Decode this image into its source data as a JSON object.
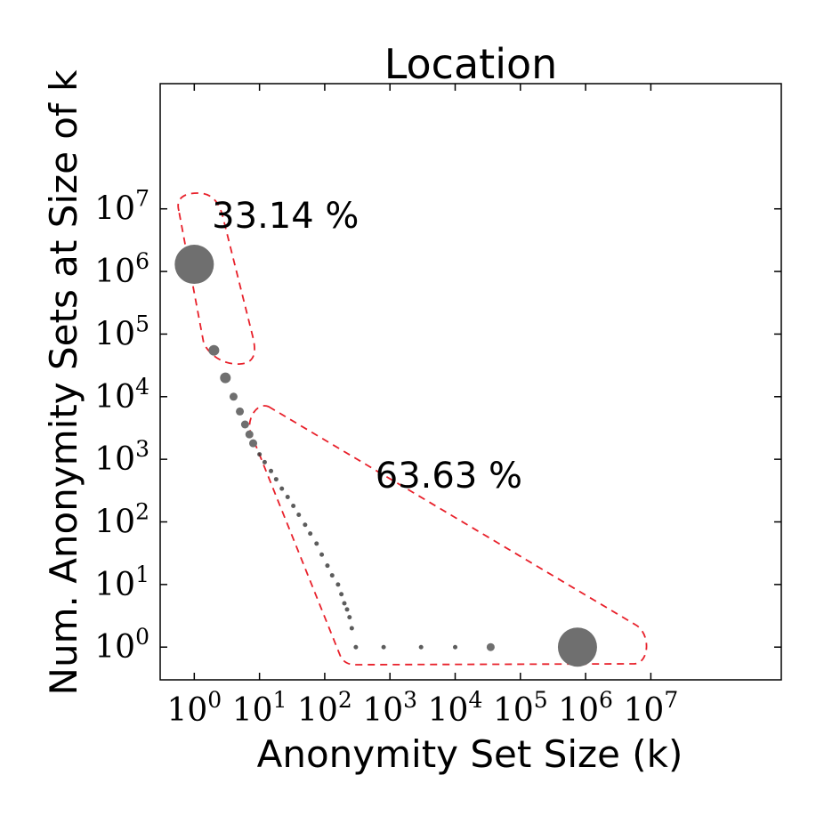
{
  "chart_data": {
    "type": "scatter",
    "title": "Location",
    "xlabel": "Anonymity Set Size (k)",
    "ylabel": "Num. Anonymity Sets at Size of k",
    "x_scale": "log",
    "y_scale": "log",
    "xlim": [
      0.3,
      1000000000
    ],
    "ylim": [
      0.3,
      1000000000
    ],
    "x_ticks": [
      1,
      10,
      100,
      1000,
      10000,
      100000,
      1000000,
      10000000
    ],
    "y_ticks": [
      1,
      10,
      100,
      1000,
      10000,
      100000,
      1000000,
      10000000
    ],
    "tick_base": "10",
    "tick_exponents": [
      "0",
      "1",
      "2",
      "3",
      "4",
      "5",
      "6",
      "7"
    ],
    "grid": false,
    "point_color": "#6f6f6f",
    "highlight_color": "#e8202a",
    "points": [
      {
        "x": 1,
        "y": 1300000,
        "size": "large"
      },
      {
        "x": 2,
        "y": 55000,
        "size": "medium"
      },
      {
        "x": 3,
        "y": 20000,
        "size": "medium"
      },
      {
        "x": 4,
        "y": 10000,
        "size": "small"
      },
      {
        "x": 5,
        "y": 5800,
        "size": "small"
      },
      {
        "x": 6,
        "y": 3600,
        "size": "small"
      },
      {
        "x": 7,
        "y": 2500,
        "size": "small"
      },
      {
        "x": 8,
        "y": 1800,
        "size": "small"
      },
      {
        "x": 10,
        "y": 1200,
        "size": "tiny"
      },
      {
        "x": 12,
        "y": 900,
        "size": "tiny"
      },
      {
        "x": 15,
        "y": 650,
        "size": "tiny"
      },
      {
        "x": 18,
        "y": 480,
        "size": "tiny"
      },
      {
        "x": 22,
        "y": 340,
        "size": "tiny"
      },
      {
        "x": 27,
        "y": 250,
        "size": "tiny"
      },
      {
        "x": 33,
        "y": 180,
        "size": "tiny"
      },
      {
        "x": 40,
        "y": 130,
        "size": "tiny"
      },
      {
        "x": 50,
        "y": 90,
        "size": "tiny"
      },
      {
        "x": 60,
        "y": 65,
        "size": "tiny"
      },
      {
        "x": 75,
        "y": 45,
        "size": "tiny"
      },
      {
        "x": 90,
        "y": 30,
        "size": "tiny"
      },
      {
        "x": 110,
        "y": 20,
        "size": "tiny"
      },
      {
        "x": 130,
        "y": 14,
        "size": "tiny"
      },
      {
        "x": 160,
        "y": 10,
        "size": "tiny"
      },
      {
        "x": 180,
        "y": 7,
        "size": "tiny"
      },
      {
        "x": 200,
        "y": 5,
        "size": "tiny"
      },
      {
        "x": 220,
        "y": 4,
        "size": "tiny"
      },
      {
        "x": 240,
        "y": 3,
        "size": "tiny"
      },
      {
        "x": 260,
        "y": 2,
        "size": "tiny"
      },
      {
        "x": 300,
        "y": 1,
        "size": "tiny"
      },
      {
        "x": 800,
        "y": 1,
        "size": "tiny"
      },
      {
        "x": 3000,
        "y": 1,
        "size": "tiny"
      },
      {
        "x": 10000,
        "y": 1,
        "size": "tiny"
      },
      {
        "x": 35000,
        "y": 1,
        "size": "small"
      },
      {
        "x": 750000,
        "y": 1,
        "size": "large"
      }
    ],
    "annotations": [
      {
        "text": "33.14 %",
        "x": 25,
        "y": 5000000
      },
      {
        "text": "63.63 %",
        "x": 8000,
        "y": 350
      }
    ]
  }
}
